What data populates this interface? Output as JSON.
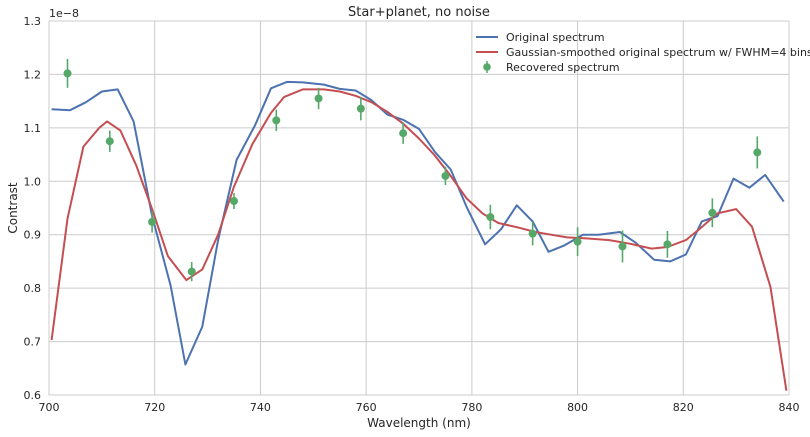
{
  "chart_data": {
    "type": "line",
    "title": "Star+planet, no noise",
    "xlabel": "Wavelength (nm)",
    "ylabel": "Contrast",
    "y_offset_label": "1e−8",
    "xlim": [
      700,
      840
    ],
    "ylim": [
      0.6,
      1.3
    ],
    "x_ticks": [
      700,
      720,
      740,
      760,
      780,
      800,
      820,
      840
    ],
    "y_ticks": [
      0.6,
      0.7,
      0.8,
      0.9,
      1.0,
      1.1,
      1.2,
      1.3
    ],
    "x_tick_labels": [
      "700",
      "720",
      "740",
      "760",
      "780",
      "800",
      "820",
      "840"
    ],
    "y_tick_labels": [
      "0.6",
      "0.7",
      "0.8",
      "0.9",
      "1.0",
      "1.1",
      "1.2",
      "1.3"
    ],
    "grid": true,
    "legend_position": "top-right",
    "series": [
      {
        "name": "Original spectrum",
        "kind": "line",
        "color": "#4c72b0",
        "points": [
          [
            700.5,
            1.135
          ],
          [
            704,
            1.133
          ],
          [
            707,
            1.148
          ],
          [
            710,
            1.168
          ],
          [
            713,
            1.172
          ],
          [
            716,
            1.112
          ],
          [
            719.5,
            0.935
          ],
          [
            723,
            0.805
          ],
          [
            725.8,
            0.657
          ],
          [
            729,
            0.728
          ],
          [
            732,
            0.89
          ],
          [
            735.5,
            1.04
          ],
          [
            739,
            1.105
          ],
          [
            742,
            1.174
          ],
          [
            745,
            1.186
          ],
          [
            748,
            1.185
          ],
          [
            752,
            1.181
          ],
          [
            755,
            1.173
          ],
          [
            758,
            1.17
          ],
          [
            761,
            1.152
          ],
          [
            764,
            1.125
          ],
          [
            767,
            1.115
          ],
          [
            770,
            1.098
          ],
          [
            773,
            1.055
          ],
          [
            776,
            1.022
          ],
          [
            779,
            0.952
          ],
          [
            782.5,
            0.882
          ],
          [
            785.5,
            0.91
          ],
          [
            788.5,
            0.955
          ],
          [
            791.5,
            0.925
          ],
          [
            794.5,
            0.868
          ],
          [
            797.5,
            0.88
          ],
          [
            801,
            0.9
          ],
          [
            804,
            0.9
          ],
          [
            808,
            0.905
          ],
          [
            811,
            0.885
          ],
          [
            814.5,
            0.853
          ],
          [
            817.5,
            0.85
          ],
          [
            820.5,
            0.863
          ],
          [
            823.5,
            0.925
          ],
          [
            826.5,
            0.935
          ],
          [
            829.5,
            1.005
          ],
          [
            832.5,
            0.988
          ],
          [
            835.5,
            1.012
          ],
          [
            839,
            0.962
          ]
        ]
      },
      {
        "name": "Gaussian-smoothed original spectrum w/ FWHM=4 bins",
        "kind": "line",
        "color": "#c44e52",
        "points": [
          [
            700.5,
            0.703
          ],
          [
            703.5,
            0.93
          ],
          [
            706.5,
            1.065
          ],
          [
            709.5,
            1.1
          ],
          [
            711,
            1.112
          ],
          [
            713.5,
            1.095
          ],
          [
            716.5,
            1.03
          ],
          [
            719.5,
            0.948
          ],
          [
            722.5,
            0.86
          ],
          [
            726,
            0.815
          ],
          [
            729,
            0.835
          ],
          [
            732,
            0.9
          ],
          [
            735,
            0.99
          ],
          [
            738.5,
            1.07
          ],
          [
            742,
            1.128
          ],
          [
            744.5,
            1.158
          ],
          [
            748,
            1.172
          ],
          [
            752,
            1.172
          ],
          [
            755,
            1.168
          ],
          [
            758,
            1.16
          ],
          [
            761,
            1.148
          ],
          [
            764,
            1.13
          ],
          [
            767,
            1.108
          ],
          [
            770,
            1.08
          ],
          [
            773,
            1.048
          ],
          [
            776,
            1.01
          ],
          [
            779,
            0.968
          ],
          [
            782,
            0.94
          ],
          [
            785,
            0.922
          ],
          [
            789,
            0.913
          ],
          [
            792,
            0.905
          ],
          [
            795,
            0.9
          ],
          [
            798,
            0.895
          ],
          [
            802,
            0.893
          ],
          [
            806,
            0.89
          ],
          [
            810,
            0.883
          ],
          [
            814,
            0.874
          ],
          [
            817,
            0.877
          ],
          [
            820.5,
            0.89
          ],
          [
            823,
            0.91
          ],
          [
            826.5,
            0.94
          ],
          [
            830,
            0.948
          ],
          [
            833,
            0.915
          ],
          [
            836.5,
            0.802
          ],
          [
            839.5,
            0.608
          ]
        ]
      },
      {
        "name": "Recovered spectrum",
        "kind": "errorbar",
        "color": "#55a868",
        "points": [
          [
            703.5,
            1.202,
            0.027
          ],
          [
            711.5,
            1.075,
            0.02
          ],
          [
            719.5,
            0.924,
            0.02
          ],
          [
            727,
            0.831,
            0.018
          ],
          [
            735,
            0.963,
            0.015
          ],
          [
            743,
            1.114,
            0.02
          ],
          [
            751,
            1.155,
            0.02
          ],
          [
            759,
            1.136,
            0.022
          ],
          [
            767,
            1.09,
            0.02
          ],
          [
            775,
            1.01,
            0.017
          ],
          [
            783.5,
            0.933,
            0.023
          ],
          [
            791.5,
            0.902,
            0.022
          ],
          [
            800,
            0.887,
            0.027
          ],
          [
            808.5,
            0.878,
            0.03
          ],
          [
            817,
            0.882,
            0.025
          ],
          [
            825.5,
            0.941,
            0.027
          ],
          [
            834,
            1.054,
            0.03
          ]
        ]
      }
    ]
  }
}
